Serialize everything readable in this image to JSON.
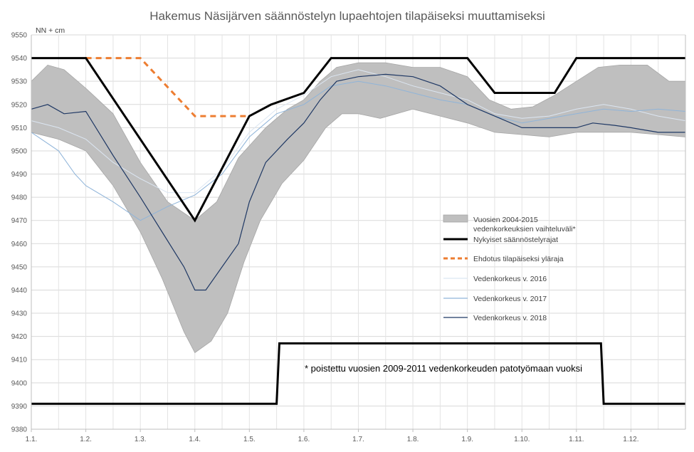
{
  "chart_data": {
    "type": "line",
    "title": "Hakemus Näsijärven säännöstelyn lupaehtojen tilapäiseksi muuttamiseksi",
    "ylabel": "NN + cm",
    "xlabel": "",
    "ylim": [
      9380,
      9550
    ],
    "y_ticks": [
      9380,
      9390,
      9400,
      9410,
      9420,
      9430,
      9440,
      9450,
      9460,
      9470,
      9480,
      9490,
      9500,
      9510,
      9520,
      9530,
      9540,
      9550
    ],
    "x_range": [
      1,
      13
    ],
    "x_ticks": [
      {
        "x": 1,
        "label": "1.1."
      },
      {
        "x": 2,
        "label": "1.2."
      },
      {
        "x": 3,
        "label": "1.3."
      },
      {
        "x": 4,
        "label": "1.4."
      },
      {
        "x": 5,
        "label": "1.5."
      },
      {
        "x": 6,
        "label": "1.6."
      },
      {
        "x": 7,
        "label": "1.7."
      },
      {
        "x": 8,
        "label": "1.8."
      },
      {
        "x": 9,
        "label": "1.9."
      },
      {
        "x": 10,
        "label": "1.10."
      },
      {
        "x": 11,
        "label": "1.11."
      },
      {
        "x": 12,
        "label": "1.12."
      }
    ],
    "grid": "vertical-and-horizontal",
    "legend_position": "center-right",
    "band": {
      "name": "Vuosien 2004-2015 vedenkorkeuksien vaihteluväli*",
      "color": "#bfbfbf",
      "upper": [
        [
          1,
          9530
        ],
        [
          1.3,
          9537
        ],
        [
          1.6,
          9535
        ],
        [
          2,
          9527
        ],
        [
          2.5,
          9516
        ],
        [
          3,
          9495
        ],
        [
          3.5,
          9478
        ],
        [
          4,
          9470
        ],
        [
          4.4,
          9478
        ],
        [
          4.8,
          9497
        ],
        [
          5.3,
          9510
        ],
        [
          5.7,
          9518
        ],
        [
          6,
          9522
        ],
        [
          6.3,
          9530
        ],
        [
          6.6,
          9536
        ],
        [
          7,
          9538
        ],
        [
          7.5,
          9538
        ],
        [
          8,
          9536
        ],
        [
          8.5,
          9536
        ],
        [
          9,
          9532
        ],
        [
          9.4,
          9522
        ],
        [
          9.8,
          9518
        ],
        [
          10.2,
          9519
        ],
        [
          10.6,
          9524
        ],
        [
          11,
          9530
        ],
        [
          11.4,
          9536
        ],
        [
          11.8,
          9537
        ],
        [
          12.3,
          9537
        ],
        [
          12.7,
          9530
        ],
        [
          13,
          9530
        ]
      ],
      "lower": [
        [
          1,
          9508
        ],
        [
          1.5,
          9505
        ],
        [
          2,
          9500
        ],
        [
          2.5,
          9485
        ],
        [
          3,
          9465
        ],
        [
          3.4,
          9445
        ],
        [
          3.8,
          9422
        ],
        [
          4,
          9413
        ],
        [
          4.3,
          9418
        ],
        [
          4.6,
          9430
        ],
        [
          4.9,
          9452
        ],
        [
          5.2,
          9470
        ],
        [
          5.6,
          9486
        ],
        [
          6,
          9496
        ],
        [
          6.4,
          9510
        ],
        [
          6.7,
          9516
        ],
        [
          7,
          9516
        ],
        [
          7.4,
          9514
        ],
        [
          8,
          9518
        ],
        [
          8.5,
          9515
        ],
        [
          9,
          9512
        ],
        [
          9.5,
          9508
        ],
        [
          10,
          9507
        ],
        [
          10.5,
          9506
        ],
        [
          11,
          9508
        ],
        [
          11.5,
          9508
        ],
        [
          12,
          9508
        ],
        [
          12.5,
          9507
        ],
        [
          13,
          9506
        ]
      ]
    },
    "series": [
      {
        "name": "Nykyiset säännöstelyrajat",
        "color": "#000000",
        "width": 3,
        "dash": "",
        "points": [
          [
            1,
            9540
          ],
          [
            2,
            9540
          ],
          [
            4,
            9470
          ],
          [
            5,
            9515
          ],
          [
            5.4,
            9520
          ],
          [
            6,
            9525
          ],
          [
            6.5,
            9540
          ],
          [
            9,
            9540
          ],
          [
            9.5,
            9525
          ],
          [
            10.6,
            9525
          ],
          [
            11,
            9540
          ],
          [
            13,
            9540
          ]
        ]
      },
      {
        "name": "Nykyiset säännöstelyrajat",
        "color": "#000000",
        "width": 3,
        "dash": "",
        "points": [
          [
            1,
            9391
          ],
          [
            5.5,
            9391
          ],
          [
            5.55,
            9417
          ],
          [
            11.45,
            9417
          ],
          [
            11.5,
            9391
          ],
          [
            13,
            9391
          ]
        ]
      },
      {
        "name": "Ehdotus tilapäiseksi ylärajaksi",
        "color": "#ed7d31",
        "width": 3,
        "dash": "8,6",
        "points": [
          [
            2,
            9540
          ],
          [
            3,
            9540
          ],
          [
            4,
            9515
          ],
          [
            5,
            9515
          ]
        ]
      },
      {
        "name": "Vedenkorkeus v. 2016",
        "color": "#dce6f2",
        "width": 1,
        "dash": "",
        "points": [
          [
            1,
            9513
          ],
          [
            1.5,
            9510
          ],
          [
            2,
            9505
          ],
          [
            2.5,
            9495
          ],
          [
            3,
            9488
          ],
          [
            3.5,
            9482
          ],
          [
            4,
            9482
          ],
          [
            4.5,
            9492
          ],
          [
            5,
            9508
          ],
          [
            5.5,
            9518
          ],
          [
            6,
            9524
          ],
          [
            6.5,
            9532
          ],
          [
            7,
            9535
          ],
          [
            7.5,
            9532
          ],
          [
            8,
            9528
          ],
          [
            8.5,
            9525
          ],
          [
            9,
            9522
          ],
          [
            9.5,
            9516
          ],
          [
            10,
            9514
          ],
          [
            10.5,
            9515
          ],
          [
            11,
            9518
          ],
          [
            11.5,
            9520
          ],
          [
            12,
            9518
          ],
          [
            12.5,
            9515
          ],
          [
            13,
            9513
          ]
        ]
      },
      {
        "name": "Vedenkorkeus v. 2017",
        "color": "#8fb4d9",
        "width": 1,
        "dash": "",
        "points": [
          [
            1,
            9508
          ],
          [
            1.5,
            9500
          ],
          [
            1.8,
            9490
          ],
          [
            2,
            9485
          ],
          [
            2.5,
            9478
          ],
          [
            3,
            9470
          ],
          [
            3.5,
            9476
          ],
          [
            4,
            9481
          ],
          [
            4.5,
            9490
          ],
          [
            5,
            9506
          ],
          [
            5.5,
            9516
          ],
          [
            6,
            9520
          ],
          [
            6.5,
            9528
          ],
          [
            7,
            9530
          ],
          [
            7.5,
            9528
          ],
          [
            8,
            9525
          ],
          [
            8.5,
            9522
          ],
          [
            9,
            9520
          ],
          [
            9.5,
            9515
          ],
          [
            10,
            9512
          ],
          [
            10.5,
            9514
          ],
          [
            11,
            9516
          ],
          [
            11.5,
            9518
          ],
          [
            12,
            9517
          ],
          [
            12.5,
            9518
          ],
          [
            13,
            9517
          ]
        ]
      },
      {
        "name": "Vedenkorkeus v. 2018",
        "color": "#1f3864",
        "width": 1.2,
        "dash": "",
        "points": [
          [
            1,
            9518
          ],
          [
            1.3,
            9520
          ],
          [
            1.6,
            9516
          ],
          [
            2,
            9517
          ],
          [
            2.5,
            9498
          ],
          [
            3,
            9480
          ],
          [
            3.4,
            9465
          ],
          [
            3.8,
            9450
          ],
          [
            4,
            9440
          ],
          [
            4.2,
            9440
          ],
          [
            4.5,
            9450
          ],
          [
            4.8,
            9460
          ],
          [
            5,
            9478
          ],
          [
            5.3,
            9495
          ],
          [
            5.7,
            9505
          ],
          [
            6,
            9512
          ],
          [
            6.3,
            9522
          ],
          [
            6.6,
            9530
          ],
          [
            7,
            9532
          ],
          [
            7.5,
            9533
          ],
          [
            8,
            9532
          ],
          [
            8.5,
            9528
          ],
          [
            9,
            9520
          ],
          [
            9.5,
            9515
          ],
          [
            10,
            9510
          ],
          [
            10.5,
            9510
          ],
          [
            11,
            9510
          ],
          [
            11.3,
            9512
          ],
          [
            11.7,
            9511
          ],
          [
            12,
            9510
          ],
          [
            12.5,
            9508
          ],
          [
            13,
            9508
          ]
        ]
      }
    ],
    "legend": [
      {
        "label": "Vuosien 2004-2015",
        "label2": "vedenkorkeuksien vaihteluväli*",
        "kind": "band",
        "color": "#bfbfbf"
      },
      {
        "label": "Nykyiset säännöstelyrajat",
        "kind": "line",
        "color": "#000000",
        "dash": ""
      },
      {
        "label": "Ehdotus tilapäiseksi yläraja",
        "kind": "line",
        "color": "#ed7d31",
        "dash": "6,4"
      },
      {
        "label": "Vedenkorkeus v. 2016",
        "kind": "line",
        "color": "#dce6f2",
        "dash": ""
      },
      {
        "label": "Vedenkorkeus v. 2017",
        "kind": "line",
        "color": "#8fb4d9",
        "dash": ""
      },
      {
        "label": "Vedenkorkeus v. 2018",
        "kind": "line",
        "color": "#1f3864",
        "dash": ""
      }
    ],
    "annotation": "* poistettu vuosien 2009-2011 vedenkorkeuden patotyömaan vuoksi"
  }
}
